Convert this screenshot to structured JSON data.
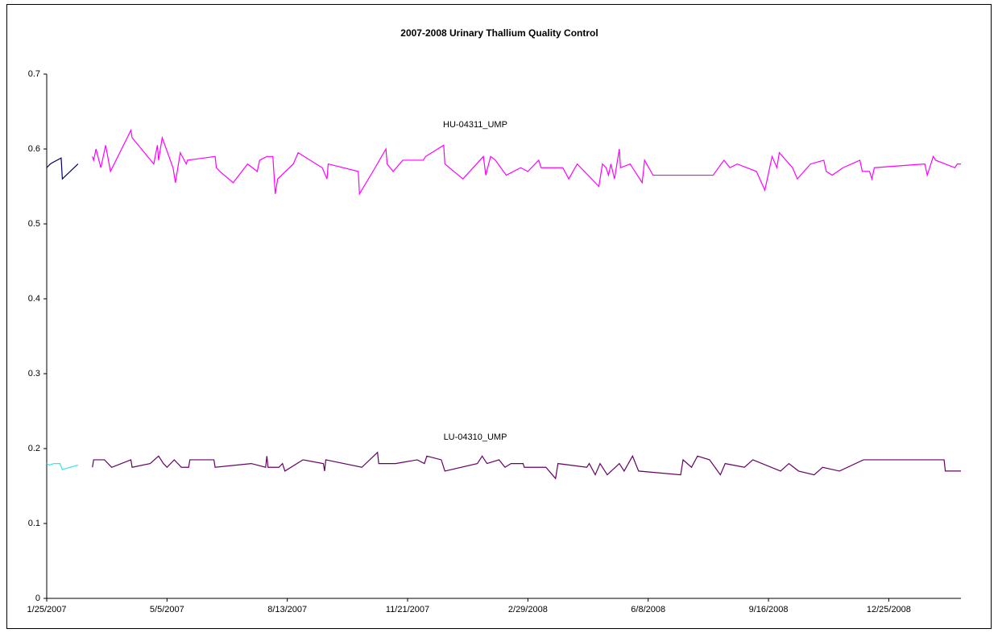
{
  "chart_data": {
    "type": "line",
    "title": "2007-2008 Urinary Thallium Quality Control",
    "annotations": [
      "HU-04311_UMP",
      "LU-04310_UMP"
    ],
    "xlim": [
      "1/25/2007",
      "2/23/2009"
    ],
    "xticks": [
      "1/25/2007",
      "5/5/2007",
      "8/13/2007",
      "11/21/2007",
      "2/29/2008",
      "6/8/2008",
      "9/16/2008",
      "12/25/2008"
    ],
    "ylim": [
      0,
      0.7
    ],
    "yticks": [
      0,
      0.1,
      0.2,
      0.3,
      0.4,
      0.5,
      0.6,
      0.7
    ],
    "grid": false,
    "series": [
      {
        "color": "#000066",
        "x": [
          "1/25/2007",
          "1/28/2007",
          "1/30/2007",
          "2/6/2007",
          "2/7/2007",
          "2/20/2007"
        ],
        "values": [
          0.575,
          0.58,
          0.582,
          0.588,
          0.56,
          0.58
        ]
      },
      {
        "color": "#33e6e6",
        "x": [
          "1/25/2007",
          "1/27/2007",
          "1/31/2007",
          "2/5/2007",
          "2/7/2007",
          "2/20/2007"
        ],
        "values": [
          0.18,
          0.178,
          0.18,
          0.18,
          0.172,
          0.178
        ]
      },
      {
        "color": "#ff00ff",
        "x": [
          "3/4/2007",
          "3/5/2007",
          "3/7/2007",
          "3/11/2007",
          "3/15/2007",
          "3/19/2007",
          "4/5/2007",
          "4/6/2007",
          "4/24/2007",
          "4/27/2007",
          "4/28/2007",
          "5/1/2007",
          "5/10/2007",
          "5/12/2007",
          "5/16/2007",
          "5/21/2007",
          "5/22/2007",
          "6/14/2007",
          "6/15/2007",
          "6/18/2007",
          "6/29/2007",
          "7/11/2007",
          "7/19/2007",
          "7/21/2007",
          "7/27/2007",
          "8/1/2007",
          "8/3/2007",
          "8/5/2007",
          "8/18/2007",
          "8/22/2007",
          "9/11/2007",
          "9/15/2007",
          "9/16/2007",
          "10/11/2007",
          "10/12/2007",
          "10/25/2007",
          "11/3/2007",
          "11/4/2007",
          "11/9/2007",
          "11/17/2007",
          "12/4/2007",
          "12/6/2007",
          "12/21/2007",
          "12/22/2007",
          "1/6/2008",
          "1/23/2008",
          "1/25/2008",
          "1/29/2008",
          "2/2/2008",
          "2/11/2008",
          "2/23/2008",
          "2/29/2008",
          "3/9/2008",
          "3/11/2008",
          "3/29/2008",
          "4/3/2008",
          "4/10/2008",
          "4/28/2008",
          "5/1/2008",
          "5/4/2008",
          "5/6/2008",
          "5/8/2008",
          "5/11/2008",
          "5/15/2008",
          "5/16/2008",
          "5/24/2008",
          "6/3/2008",
          "6/5/2008",
          "6/12/2008",
          "8/1/2008",
          "8/10/2008",
          "8/15/2008",
          "8/21/2008",
          "9/6/2008",
          "9/13/2008",
          "9/19/2008",
          "9/23/2008",
          "9/25/2008",
          "10/6/2008",
          "10/10/2008",
          "10/21/2008",
          "11/1/2008",
          "11/3/2008",
          "11/8/2008",
          "11/17/2008",
          "12/1/2008",
          "12/3/2008",
          "12/9/2008",
          "12/11/2008",
          "12/13/2008",
          "1/24/2009",
          "1/26/2009",
          "1/31/2009",
          "2/2/2009",
          "2/18/2009",
          "2/20/2009",
          "2/23/2009"
        ],
        "values": [
          0.59,
          0.585,
          0.6,
          0.575,
          0.605,
          0.57,
          0.625,
          0.615,
          0.58,
          0.605,
          0.585,
          0.615,
          0.575,
          0.555,
          0.595,
          0.58,
          0.585,
          0.59,
          0.575,
          0.57,
          0.555,
          0.58,
          0.57,
          0.585,
          0.59,
          0.59,
          0.54,
          0.56,
          0.58,
          0.595,
          0.575,
          0.56,
          0.58,
          0.57,
          0.54,
          0.575,
          0.6,
          0.58,
          0.57,
          0.585,
          0.585,
          0.59,
          0.605,
          0.58,
          0.56,
          0.59,
          0.565,
          0.59,
          0.585,
          0.565,
          0.575,
          0.57,
          0.585,
          0.575,
          0.575,
          0.56,
          0.58,
          0.55,
          0.58,
          0.575,
          0.565,
          0.58,
          0.56,
          0.6,
          0.575,
          0.58,
          0.555,
          0.585,
          0.565,
          0.565,
          0.585,
          0.575,
          0.58,
          0.57,
          0.545,
          0.59,
          0.575,
          0.595,
          0.575,
          0.56,
          0.58,
          0.585,
          0.57,
          0.565,
          0.575,
          0.585,
          0.57,
          0.57,
          0.56,
          0.575,
          0.58,
          0.565,
          0.59,
          0.585,
          0.575,
          0.58,
          0.58
        ]
      },
      {
        "color": "#660066",
        "x": [
          "3/4/2007",
          "3/5/2007",
          "3/14/2007",
          "3/20/2007",
          "4/5/2007",
          "4/6/2007",
          "4/21/2007",
          "4/28/2007",
          "5/2/2007",
          "5/5/2007",
          "5/11/2007",
          "5/17/2007",
          "5/23/2007",
          "5/24/2007",
          "6/13/2007",
          "6/14/2007",
          "7/14/2007",
          "7/26/2007",
          "7/27/2007",
          "7/28/2007",
          "8/6/2007",
          "8/9/2007",
          "8/11/2007",
          "8/26/2007",
          "9/12/2007",
          "9/13/2007",
          "9/14/2007",
          "10/14/2007",
          "10/27/2007",
          "10/28/2007",
          "11/11/2007",
          "11/29/2007",
          "12/5/2007",
          "12/7/2007",
          "12/19/2007",
          "12/22/2007",
          "1/18/2008",
          "1/22/2008",
          "1/26/2008",
          "2/5/2008",
          "2/10/2008",
          "2/15/2008",
          "2/25/2008",
          "2/26/2008",
          "3/15/2008",
          "3/23/2008",
          "3/25/2008",
          "4/18/2008",
          "4/20/2008",
          "4/25/2008",
          "4/29/2008",
          "5/5/2008",
          "5/15/2008",
          "5/19/2008",
          "5/26/2008",
          "5/31/2008",
          "7/5/2008",
          "7/7/2008",
          "7/14/2008",
          "7/19/2008",
          "7/29/2008",
          "8/7/2008",
          "8/11/2008",
          "8/27/2008",
          "9/3/2008",
          "9/26/2008",
          "10/3/2008",
          "10/11/2008",
          "10/24/2008",
          "10/31/2008",
          "11/14/2008",
          "12/4/2008",
          "12/31/2008",
          "2/9/2009",
          "2/10/2009",
          "2/23/2009"
        ],
        "values": [
          0.175,
          0.185,
          0.185,
          0.175,
          0.185,
          0.175,
          0.18,
          0.19,
          0.18,
          0.175,
          0.185,
          0.175,
          0.175,
          0.185,
          0.185,
          0.175,
          0.18,
          0.175,
          0.19,
          0.175,
          0.175,
          0.18,
          0.17,
          0.185,
          0.18,
          0.17,
          0.185,
          0.175,
          0.195,
          0.18,
          0.18,
          0.185,
          0.18,
          0.19,
          0.185,
          0.17,
          0.18,
          0.19,
          0.18,
          0.185,
          0.175,
          0.18,
          0.18,
          0.175,
          0.175,
          0.16,
          0.18,
          0.175,
          0.18,
          0.165,
          0.18,
          0.165,
          0.18,
          0.17,
          0.19,
          0.17,
          0.165,
          0.185,
          0.175,
          0.19,
          0.185,
          0.165,
          0.18,
          0.175,
          0.185,
          0.17,
          0.18,
          0.17,
          0.165,
          0.175,
          0.17,
          0.185,
          0.185,
          0.185,
          0.17,
          0.17
        ]
      }
    ]
  }
}
